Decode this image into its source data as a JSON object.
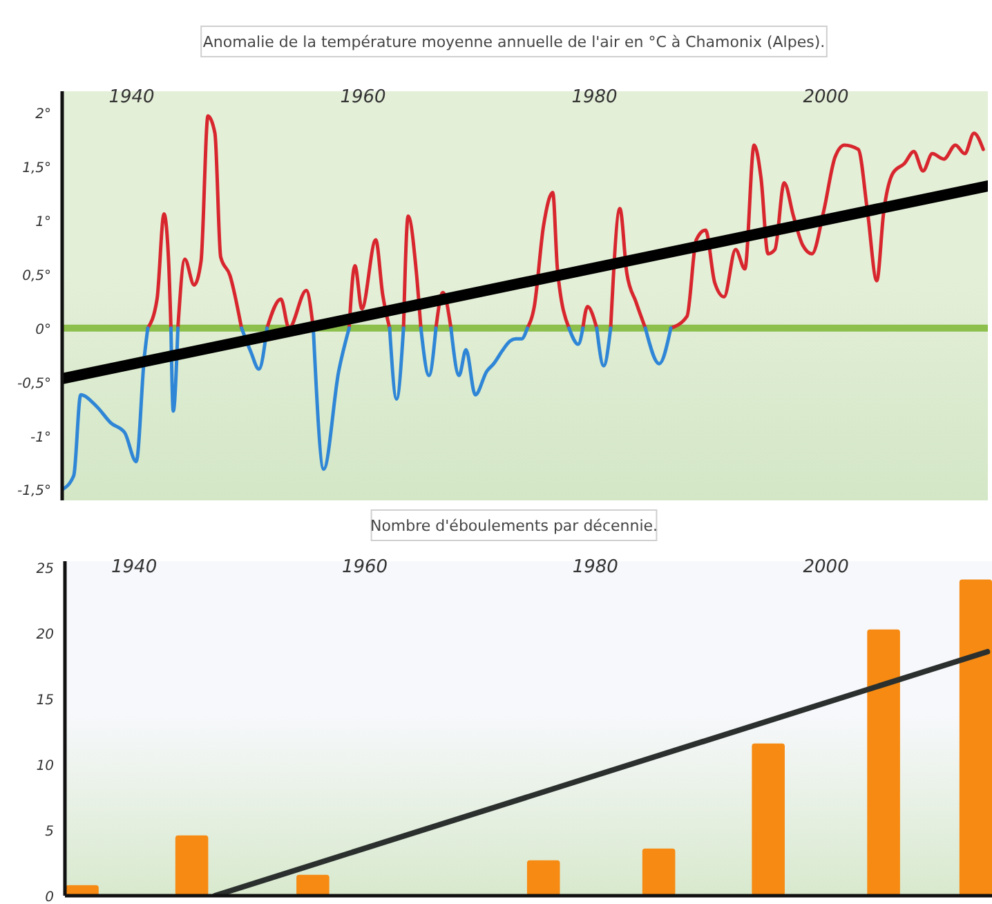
{
  "chart_data": [
    {
      "type": "line",
      "title": "Anomalie de la température moyenne annuelle de l'air en °C à Chamonix (Alpes).",
      "xlim": [
        1934,
        2014
      ],
      "xticks": [
        1940,
        1960,
        1980,
        2000
      ],
      "ylim": [
        -1.6,
        2.2
      ],
      "yticks": [
        {
          "value": -1.5,
          "label": "-1,5°"
        },
        {
          "value": -1,
          "label": "-1°"
        },
        {
          "value": -0.5,
          "label": "-0,5°"
        },
        {
          "value": 0,
          "label": "0°"
        },
        {
          "value": 0.5,
          "label": "0,5°"
        },
        {
          "value": 1,
          "label": "1°"
        },
        {
          "value": 1.5,
          "label": "1,5°"
        },
        {
          "value": 2,
          "label": "2°"
        }
      ],
      "grid": false,
      "ref_lines": [
        {
          "axis": "y",
          "value": 0,
          "color": "#8cbf4c"
        }
      ],
      "x": [
        1934.0,
        1935.0,
        1935.6,
        1937.0,
        1938.2,
        1939.4,
        1940.4,
        1941.1,
        1941.4,
        1942.2,
        1942.8,
        1943.2,
        1943.4,
        1943.6,
        1944.0,
        1944.6,
        1945.4,
        1946.0,
        1946.6,
        1947.2,
        1947.7,
        1948.5,
        1949.5,
        1950.3,
        1951.0,
        1951.7,
        1952.9,
        1953.6,
        1955.1,
        1955.7,
        1956.6,
        1957.9,
        1958.8,
        1959.3,
        1959.9,
        1961.1,
        1961.7,
        1962.3,
        1962.9,
        1963.5,
        1963.9,
        1964.6,
        1965.0,
        1965.7,
        1966.3,
        1966.9,
        1967.6,
        1968.3,
        1968.9,
        1969.7,
        1970.7,
        1971.3,
        1972.1,
        1972.7,
        1973.2,
        1973.7,
        1974.2,
        1974.8,
        1975.6,
        1976.4,
        1976.8,
        1977.8,
        1978.6,
        1979.0,
        1979.4,
        1980.2,
        1980.8,
        1981.4,
        1982.2,
        1982.8,
        1983.6,
        1984.4,
        1985.6,
        1986.6,
        1988.0,
        1988.8,
        1989.6,
        1990.4,
        1991.2,
        1992.2,
        1993.0,
        1993.8,
        1994.4,
        1995.0,
        1995.6,
        1996.4,
        1997.2,
        1998.0,
        1998.8,
        1999.8,
        2000.8,
        2001.6,
        2002.8,
        2003.6,
        2004.4,
        2005.0,
        2005.8,
        2006.8,
        2007.6,
        2008.4,
        2009.2,
        2010.2,
        2011.2,
        2012.0,
        2012.8,
        2013.6
      ],
      "series": [
        {
          "color": "#d8262e",
          "values": [
            null,
            null,
            null,
            null,
            null,
            null,
            null,
            null,
            0,
            0.27,
            1.06,
            0.62,
            0,
            null,
            0,
            0.64,
            0.4,
            0.62,
            1.97,
            1.81,
            0.66,
            0.49,
            0,
            null,
            null,
            0,
            0.27,
            0,
            0.35,
            0,
            null,
            null,
            0,
            0.58,
            0.18,
            0.82,
            0.31,
            0,
            null,
            0,
            1.04,
            0.53,
            0,
            null,
            0,
            0.33,
            0,
            null,
            null,
            null,
            null,
            null,
            null,
            null,
            null,
            null,
            0,
            0.2,
            0.95,
            1.26,
            0.55,
            0,
            null,
            0,
            0.2,
            0,
            null,
            0,
            1.11,
            0.51,
            0.24,
            0,
            null,
            0,
            0.11,
            0.82,
            0.91,
            0.42,
            0.29,
            0.73,
            0.55,
            1.7,
            1.39,
            0.69,
            0.73,
            1.35,
            1.04,
            0.77,
            0.69,
            1.08,
            1.59,
            1.7,
            1.66,
            1.08,
            0.44,
            1.08,
            1.44,
            1.53,
            1.64,
            1.46,
            1.62,
            1.57,
            1.7,
            1.62,
            1.81,
            1.66
          ]
        },
        {
          "color": "#2f86d6",
          "values": [
            -1.5,
            -1.37,
            -0.62,
            -0.73,
            -0.88,
            -0.97,
            -1.24,
            -0.27,
            0,
            null,
            null,
            null,
            0,
            -0.77,
            0,
            null,
            null,
            null,
            null,
            null,
            null,
            null,
            0,
            -0.22,
            -0.38,
            0,
            null,
            null,
            null,
            0,
            -1.31,
            -0.4,
            0,
            null,
            null,
            null,
            null,
            0,
            -0.66,
            0,
            null,
            null,
            0,
            -0.44,
            0,
            null,
            0,
            -0.44,
            -0.2,
            -0.62,
            -0.4,
            -0.33,
            -0.2,
            -0.12,
            -0.1,
            -0.1,
            0,
            null,
            null,
            null,
            null,
            0,
            -0.15,
            0,
            null,
            0,
            -0.35,
            0,
            null,
            null,
            null,
            0,
            -0.33,
            0,
            null,
            null,
            null,
            null,
            null,
            null,
            null,
            null,
            null,
            null,
            null,
            null,
            null,
            null,
            null,
            null,
            null,
            null,
            null,
            null,
            null,
            null,
            null,
            null,
            null,
            null,
            null,
            null,
            null,
            null,
            null,
            null
          ]
        },
        {
          "type": "line",
          "color": "#000000",
          "x": [
            1934,
            2014
          ],
          "values": [
            -0.47,
            1.32
          ]
        }
      ]
    },
    {
      "type": "bar",
      "title": "Nombre d'éboulements par décennie.",
      "xlim": [
        1934,
        2014.4
      ],
      "xticks": [
        1940,
        1960,
        1980,
        2000
      ],
      "ylim": [
        0,
        25.5
      ],
      "yticks": [
        0,
        5,
        10,
        15,
        20,
        25
      ],
      "grid": false,
      "x": [
        1935.5,
        1945,
        1955.5,
        1975.5,
        1985.5,
        1995,
        2005,
        2013
      ],
      "series": [
        {
          "color": "#f68a12",
          "values": [
            0.8,
            4.6,
            1.6,
            2.7,
            3.6,
            11.6,
            20.3,
            24.1
          ]
        },
        {
          "type": "line",
          "color": "#2b302e",
          "x": [
            1947,
            2014
          ],
          "values": [
            0,
            18.6
          ]
        }
      ]
    }
  ]
}
